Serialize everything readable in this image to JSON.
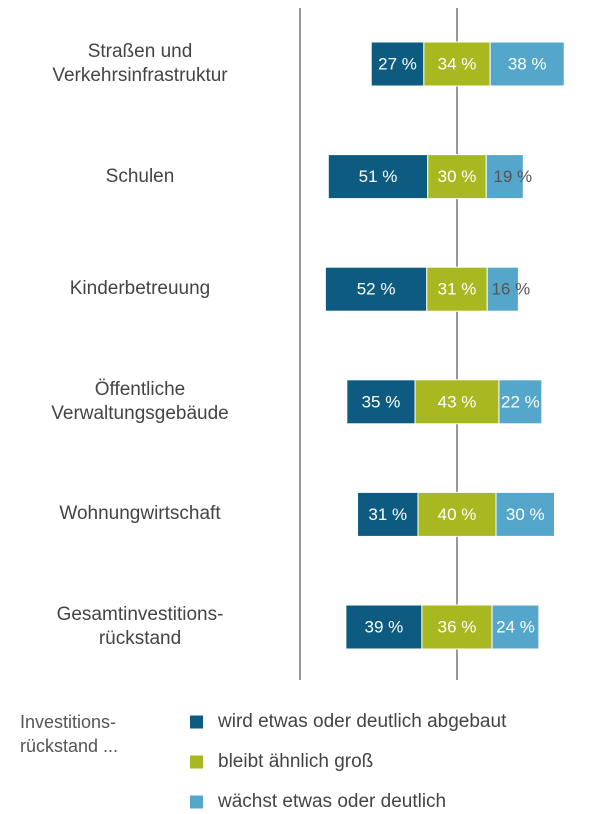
{
  "chart_data": {
    "type": "diverging_bar",
    "categories": [
      "Straßen und\nVerkehrsinfrastruktur",
      "Schulen",
      "Kinderbetreuung",
      "Öffentliche\nVerwaltungsgebäude",
      "Wohnungwirtschaft",
      "Gesamtinvestitions-\nrückstand"
    ],
    "series": [
      {
        "name": "wird etwas oder deutlich abgebaut",
        "color": "#0d5b80",
        "values": [
          27,
          51,
          52,
          35,
          31,
          39
        ],
        "value_labels": [
          "27 %",
          "51 %",
          "52 %",
          "35 %",
          "31 %",
          "39 %"
        ]
      },
      {
        "name": "bleibt ähnlich groß",
        "color": "#a8b820",
        "values": [
          34,
          30,
          31,
          43,
          40,
          36
        ],
        "value_labels": [
          "34 %",
          "30 %",
          "31 %",
          "43 %",
          "40 %",
          "36 %"
        ]
      },
      {
        "name": "wächst etwas oder deutlich",
        "color": "#54a7cb",
        "values": [
          38,
          19,
          16,
          22,
          30,
          24
        ],
        "value_labels": [
          "38 %",
          "19 %",
          "16 %",
          "22 %",
          "30 %",
          "24 %"
        ]
      }
    ],
    "legend_title": "Investitions-\nrückstand ..."
  }
}
